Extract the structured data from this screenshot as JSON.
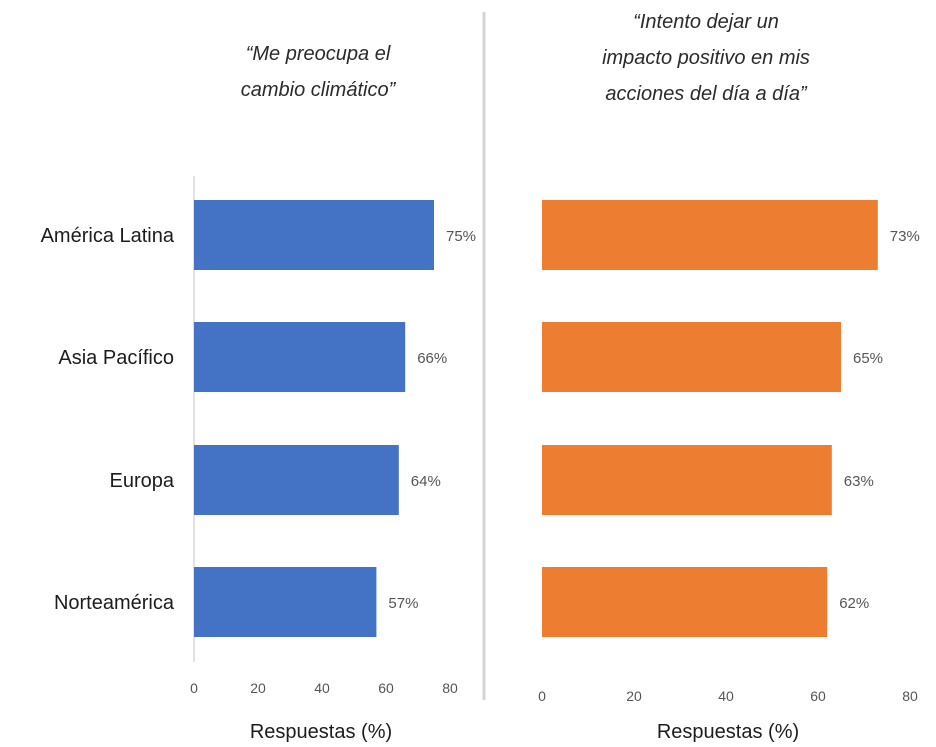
{
  "chart_data": [
    {
      "type": "bar",
      "orientation": "horizontal",
      "title": "“Me preocupa el cambio climático”",
      "xlabel": "Respuestas (%)",
      "categories": [
        "América Latina",
        "Asia Pacífico",
        "Europa",
        "Norteamérica"
      ],
      "series": [
        {
          "values": [
            75,
            66,
            64,
            57
          ]
        }
      ],
      "data_labels": [
        "75%",
        "66%",
        "64%",
        "57%"
      ],
      "x_ticks": [
        "0",
        "20",
        "40",
        "60",
        "80"
      ],
      "xlim": [
        0,
        80
      ],
      "color": "#4472C4",
      "grid": false
    },
    {
      "type": "bar",
      "orientation": "horizontal",
      "title": "“Intento dejar un impacto positivo en mis acciones del día a día”",
      "xlabel": "Respuestas (%)",
      "categories": [
        "América Latina",
        "Asia Pacífico",
        "Europa",
        "Norteamérica"
      ],
      "series": [
        {
          "values": [
            73,
            65,
            63,
            62
          ]
        }
      ],
      "data_labels": [
        "73%",
        "65%",
        "63%",
        "62%"
      ],
      "x_ticks": [
        "0",
        "20",
        "40",
        "60",
        "80"
      ],
      "xlim": [
        0,
        80
      ],
      "color": "#ED7D31",
      "grid": false
    }
  ]
}
